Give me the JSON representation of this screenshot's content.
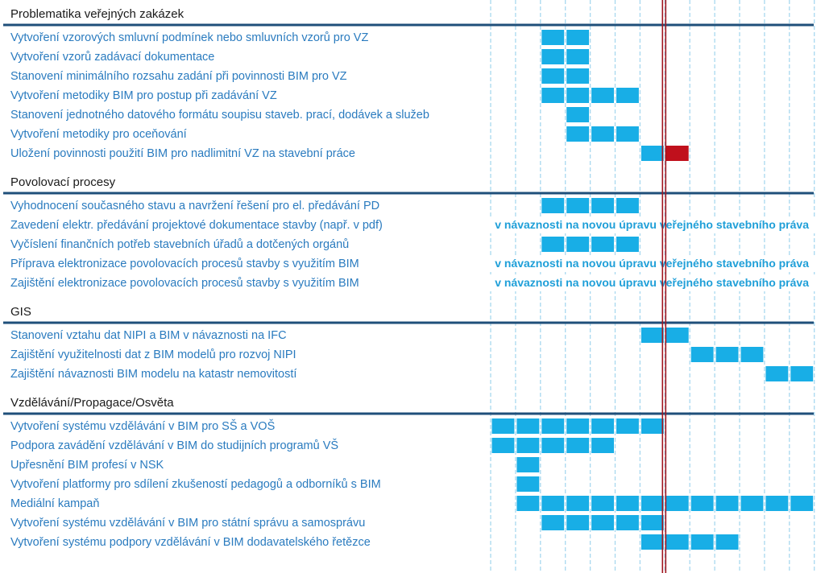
{
  "chart_data": {
    "type": "gantt",
    "title": "",
    "columns": 13,
    "current_marker_column": 7,
    "colors": {
      "bar": "#18aee6",
      "bar_highlight": "#c0101c",
      "marker": "#a01620",
      "section_line": "#1f4f7a",
      "gridline": "#a8d8ef",
      "label": "#2a7bbf",
      "note": "#1f9fd8"
    },
    "sections": [
      {
        "title": "Problematika veřejných zakázek",
        "tasks": [
          {
            "label": "Vytvoření vzorových smluvní podmínek nebo smluvních vzorů pro VZ",
            "cells": [
              2,
              3
            ]
          },
          {
            "label": "Vytvoření vzorů zadávací dokumentace",
            "cells": [
              2,
              3
            ]
          },
          {
            "label": "Stanovení minimálního rozsahu zadání při povinnosti BIM pro VZ",
            "cells": [
              2,
              3
            ]
          },
          {
            "label": "Vytvoření metodiky BIM pro postup při zadávání VZ",
            "cells": [
              2,
              3,
              4,
              5
            ]
          },
          {
            "label": "Stanovení jednotného datového formátu soupisu staveb. prací, dodávek a služeb",
            "cells": [
              3
            ]
          },
          {
            "label": "Vytvoření metodiky pro oceňování",
            "cells": [
              3,
              4,
              5
            ]
          },
          {
            "label": "Uložení povinnosti použití BIM pro nadlimitní VZ na stavební práce",
            "cells": [
              6
            ],
            "highlight_cells": [
              7
            ]
          }
        ]
      },
      {
        "title": "Povolovací procesy",
        "tasks": [
          {
            "label": "Vyhodnocení současného stavu a navržení řešení pro el. předávání PD",
            "cells": [
              2,
              3,
              4,
              5
            ]
          },
          {
            "label": "Zavedení elektr. předávání projektové dokumentace stavby (např. v pdf)",
            "cells": [],
            "note": "v návaznosti na novou úpravu veřejného stavebního práva"
          },
          {
            "label": "Vyčíslení finančních potřeb stavebních úřadů a dotčených orgánů",
            "cells": [
              2,
              3,
              4,
              5
            ]
          },
          {
            "label": "Příprava elektronizace povolovacích procesů stavby s využitím BIM",
            "cells": [],
            "note": "v návaznosti na novou úpravu veřejného stavebního práva"
          },
          {
            "label": "Zajištění elektronizace povolovacích procesů stavby s využitím BIM",
            "cells": [],
            "note": "v návaznosti na novou úpravu veřejného stavebního práva"
          }
        ]
      },
      {
        "title": "GIS",
        "tasks": [
          {
            "label": "Stanovení vztahu dat NIPI a BIM v návaznosti na IFC",
            "cells": [
              6,
              7
            ]
          },
          {
            "label": "Zajištění využitelnosti dat z BIM modelů pro rozvoj NIPI",
            "cells": [
              8,
              9,
              10
            ]
          },
          {
            "label": "Zajištění návaznosti BIM modelu na katastr nemovitostí",
            "cells": [
              11,
              12
            ]
          }
        ]
      },
      {
        "title": "Vzdělávání/Propagace/Osvěta",
        "tasks": [
          {
            "label": "Vytvoření systému vzdělávání v BIM pro SŠ a VOŠ",
            "cells": [
              0,
              1,
              2,
              3,
              4,
              5,
              6
            ]
          },
          {
            "label": "Podpora zavádění vzdělávání v BIM do studijních programů VŠ",
            "cells": [
              0,
              1,
              2,
              3,
              4
            ]
          },
          {
            "label": "Upřesnění BIM profesí v NSK",
            "cells": [
              1
            ]
          },
          {
            "label": "Vytvoření platformy pro sdílení zkušeností pedagogů a odborníků s BIM",
            "cells": [
              1
            ]
          },
          {
            "label": "Mediální kampaň",
            "cells": [
              1,
              2,
              3,
              4,
              5,
              6,
              7,
              8,
              9,
              10,
              11,
              12
            ]
          },
          {
            "label": "Vytvoření systému vzdělávání v BIM pro státní správu a samosprávu",
            "cells": [
              2,
              3,
              4,
              5,
              6
            ]
          },
          {
            "label": "Vytvoření systému podpory vzdělávání v BIM dodavatelského řetězce",
            "cells": [
              6,
              7,
              8,
              9
            ]
          }
        ]
      }
    ]
  }
}
